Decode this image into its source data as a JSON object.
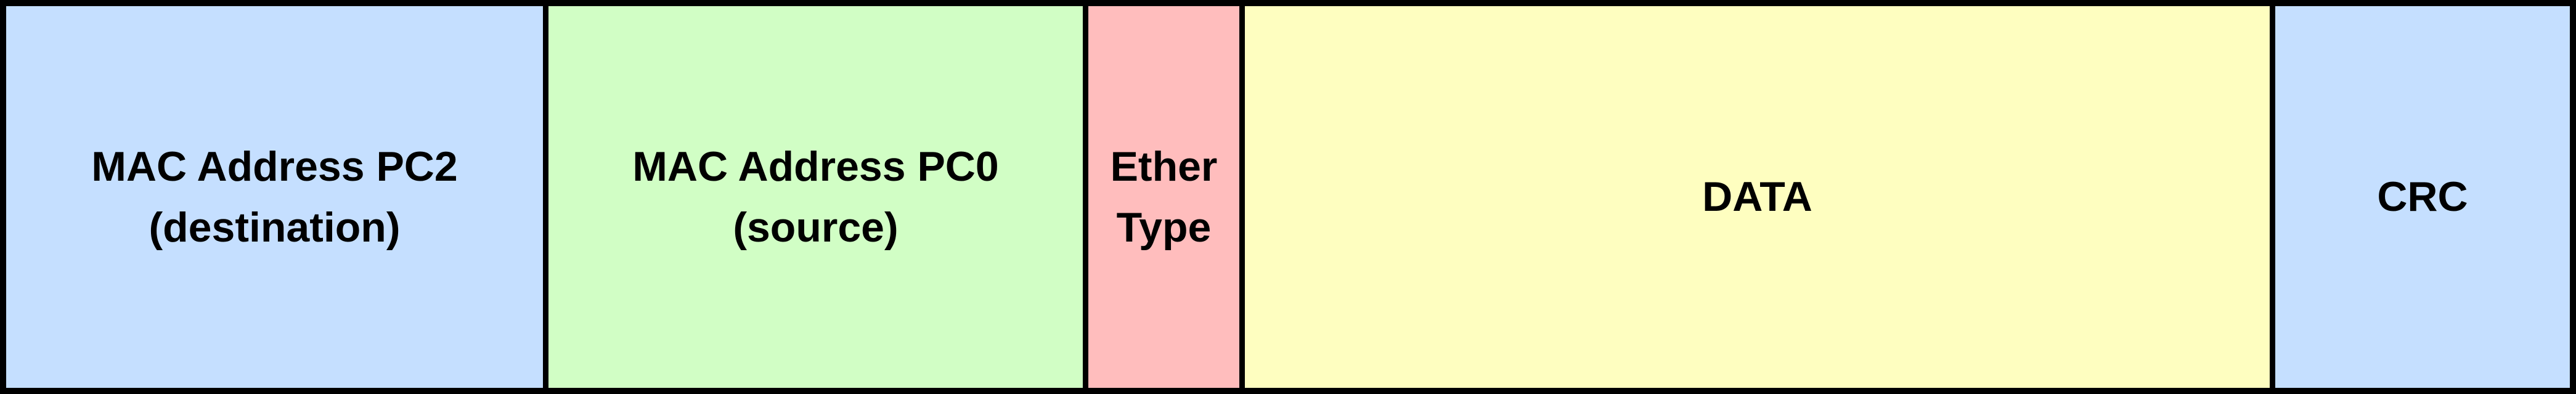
{
  "frame": {
    "fields": [
      {
        "id": "destination",
        "line1": "MAC Address PC2",
        "line2": "(destination)",
        "color": "#C5DFFF"
      },
      {
        "id": "source",
        "line1": "MAC Address PC0",
        "line2": "(source)",
        "color": "#D1FEC5"
      },
      {
        "id": "ethertype",
        "line1": "Ether",
        "line2": "Type",
        "color": "#FFBDBD"
      },
      {
        "id": "data",
        "line1": "DATA",
        "color": "#FEFEC0"
      },
      {
        "id": "crc",
        "line1": "CRC",
        "color": "#C5DFFF"
      }
    ]
  }
}
